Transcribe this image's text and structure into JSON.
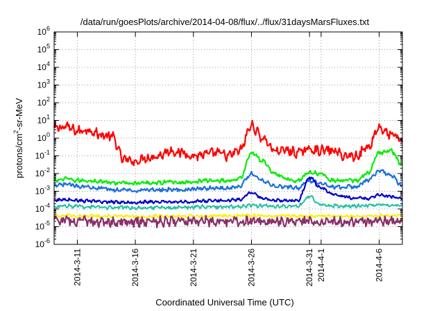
{
  "chart_data": {
    "type": "line",
    "title": "/data/run/goesPlots/archive/2014-04-08/flux/../flux/31daysMarsFluxes.txt",
    "xlabel": "Coordinated Universal Time (UTC)",
    "ylabel": {
      "pre": "protons/cm",
      "sup": "2",
      "post": "-sr-MeV"
    },
    "yscale": "log",
    "ylim_exponents": [
      -6,
      6
    ],
    "y_tick_labels": [
      {
        "base": "10",
        "exp": "6"
      },
      {
        "base": "10",
        "exp": "5"
      },
      {
        "base": "10",
        "exp": "4"
      },
      {
        "base": "10",
        "exp": "3"
      },
      {
        "base": "10",
        "exp": "2"
      },
      {
        "base": "10",
        "exp": "1"
      },
      {
        "base": "10",
        "exp": "0"
      },
      {
        "base": "10",
        "exp": "-1"
      },
      {
        "base": "10",
        "exp": "-2"
      },
      {
        "base": "10",
        "exp": "-3"
      },
      {
        "base": "10",
        "exp": "-4"
      },
      {
        "base": "10",
        "exp": "-5"
      },
      {
        "base": "10",
        "exp": "-6"
      }
    ],
    "x_start": "2014-03-09",
    "x_end": "2014-04-08",
    "x_tick_labels": [
      {
        "label": "2014-3-11",
        "date": "2014-03-11"
      },
      {
        "label": "2014-3-16",
        "date": "2014-03-16"
      },
      {
        "label": "2014-3-21",
        "date": "2014-03-21"
      },
      {
        "label": "2014-3-26",
        "date": "2014-03-26"
      },
      {
        "label": "2014-3-31",
        "date": "2014-03-31"
      },
      {
        "label": "2014-4-1",
        "date": "2014-04-01"
      },
      {
        "label": "2014-4-6",
        "date": "2014-04-06"
      }
    ],
    "grid": true,
    "series": [
      {
        "color": "#ff0000",
        "x": [
          "2014-03-09",
          "2014-03-10",
          "2014-03-11",
          "2014-03-12",
          "2014-03-13",
          "2014-03-14",
          "2014-03-15",
          "2014-03-16",
          "2014-03-17",
          "2014-03-18",
          "2014-03-19",
          "2014-03-20",
          "2014-03-21",
          "2014-03-22",
          "2014-03-23",
          "2014-03-24",
          "2014-03-25",
          "2014-03-26",
          "2014-03-27",
          "2014-03-28",
          "2014-03-29",
          "2014-03-30",
          "2014-03-31",
          "2014-04-01",
          "2014-04-02",
          "2014-04-03",
          "2014-04-04",
          "2014-04-05",
          "2014-04-06",
          "2014-04-07",
          "2014-04-08"
        ],
        "y": [
          3.5,
          4.5,
          2.5,
          3.0,
          1.5,
          1.2,
          0.06,
          0.05,
          0.08,
          0.1,
          0.2,
          0.15,
          0.1,
          0.12,
          0.15,
          0.1,
          0.2,
          5.0,
          1.0,
          0.2,
          0.2,
          0.15,
          0.25,
          0.2,
          0.2,
          0.1,
          0.1,
          0.3,
          4.0,
          1.5,
          0.8
        ]
      },
      {
        "color": "#00ee00",
        "x": [
          "2014-03-09",
          "2014-03-10",
          "2014-03-11",
          "2014-03-12",
          "2014-03-13",
          "2014-03-14",
          "2014-03-15",
          "2014-03-16",
          "2014-03-17",
          "2014-03-18",
          "2014-03-19",
          "2014-03-20",
          "2014-03-21",
          "2014-03-22",
          "2014-03-23",
          "2014-03-24",
          "2014-03-25",
          "2014-03-26",
          "2014-03-27",
          "2014-03-28",
          "2014-03-29",
          "2014-03-30",
          "2014-03-31",
          "2014-04-01",
          "2014-04-02",
          "2014-04-03",
          "2014-04-04",
          "2014-04-05",
          "2014-04-06",
          "2014-04-07",
          "2014-04-08"
        ],
        "y": [
          0.004,
          0.005,
          0.004,
          0.004,
          0.0035,
          0.003,
          0.003,
          0.0028,
          0.003,
          0.003,
          0.0035,
          0.003,
          0.0035,
          0.004,
          0.004,
          0.004,
          0.005,
          0.15,
          0.05,
          0.01,
          0.005,
          0.004,
          0.012,
          0.01,
          0.004,
          0.004,
          0.004,
          0.01,
          0.15,
          0.2,
          0.03
        ]
      },
      {
        "color": "#1e6fdc",
        "x": [
          "2014-03-09",
          "2014-03-10",
          "2014-03-11",
          "2014-03-12",
          "2014-03-13",
          "2014-03-14",
          "2014-03-15",
          "2014-03-16",
          "2014-03-17",
          "2014-03-18",
          "2014-03-19",
          "2014-03-20",
          "2014-03-21",
          "2014-03-22",
          "2014-03-23",
          "2014-03-24",
          "2014-03-25",
          "2014-03-26",
          "2014-03-27",
          "2014-03-28",
          "2014-03-29",
          "2014-03-30",
          "2014-03-31",
          "2014-04-01",
          "2014-04-02",
          "2014-04-03",
          "2014-04-04",
          "2014-04-05",
          "2014-04-06",
          "2014-04-07",
          "2014-04-08"
        ],
        "y": [
          0.002,
          0.0025,
          0.002,
          0.0018,
          0.0015,
          0.0012,
          0.0012,
          0.0011,
          0.0012,
          0.0012,
          0.0013,
          0.0012,
          0.0013,
          0.0015,
          0.0015,
          0.0015,
          0.002,
          0.01,
          0.004,
          0.002,
          0.0018,
          0.0015,
          0.004,
          0.003,
          0.0018,
          0.0018,
          0.0018,
          0.004,
          0.015,
          0.008,
          0.002
        ]
      },
      {
        "color": "#0000cc",
        "x": [
          "2014-03-09",
          "2014-03-10",
          "2014-03-11",
          "2014-03-12",
          "2014-03-13",
          "2014-03-14",
          "2014-03-15",
          "2014-03-16",
          "2014-03-17",
          "2014-03-18",
          "2014-03-19",
          "2014-03-20",
          "2014-03-21",
          "2014-03-22",
          "2014-03-23",
          "2014-03-24",
          "2014-03-25",
          "2014-03-26",
          "2014-03-27",
          "2014-03-28",
          "2014-03-29",
          "2014-03-30",
          "2014-03-31",
          "2014-04-01",
          "2014-04-02",
          "2014-04-03",
          "2014-04-04",
          "2014-04-05",
          "2014-04-06",
          "2014-04-07",
          "2014-04-08"
        ],
        "y": [
          0.0003,
          0.00035,
          0.0003,
          0.00028,
          0.00025,
          0.00025,
          0.00024,
          0.00024,
          0.00025,
          0.00025,
          0.00025,
          0.00025,
          0.00026,
          0.00028,
          0.0003,
          0.0003,
          0.00035,
          0.0008,
          0.0004,
          0.0003,
          0.0003,
          0.0003,
          0.006,
          0.0015,
          0.0007,
          0.0005,
          0.0004,
          0.0004,
          0.0006,
          0.0005,
          0.0004
        ]
      },
      {
        "color": "#20c0a0",
        "x": [
          "2014-03-09",
          "2014-03-10",
          "2014-03-11",
          "2014-03-12",
          "2014-03-13",
          "2014-03-14",
          "2014-03-15",
          "2014-03-16",
          "2014-03-17",
          "2014-03-18",
          "2014-03-19",
          "2014-03-20",
          "2014-03-21",
          "2014-03-22",
          "2014-03-23",
          "2014-03-24",
          "2014-03-25",
          "2014-03-26",
          "2014-03-27",
          "2014-03-28",
          "2014-03-29",
          "2014-03-30",
          "2014-03-31",
          "2014-04-01",
          "2014-04-02",
          "2014-04-03",
          "2014-04-04",
          "2014-04-05",
          "2014-04-06",
          "2014-04-07",
          "2014-04-08"
        ],
        "y": [
          0.00013,
          0.00015,
          0.00014,
          0.00013,
          0.00012,
          0.00012,
          0.00012,
          0.00012,
          0.00012,
          0.00012,
          0.00012,
          0.00012,
          0.00013,
          0.00013,
          0.00013,
          0.00013,
          0.00014,
          0.00016,
          0.00015,
          0.00014,
          0.00014,
          0.00014,
          0.0005,
          0.00018,
          0.00015,
          0.00015,
          0.00015,
          0.00015,
          0.00017,
          0.00016,
          0.00015
        ]
      },
      {
        "color": "#ffee00",
        "x": [
          "2014-03-09",
          "2014-03-10",
          "2014-03-11",
          "2014-03-12",
          "2014-03-13",
          "2014-03-14",
          "2014-03-15",
          "2014-03-16",
          "2014-03-17",
          "2014-03-18",
          "2014-03-19",
          "2014-03-20",
          "2014-03-21",
          "2014-03-22",
          "2014-03-23",
          "2014-03-24",
          "2014-03-25",
          "2014-03-26",
          "2014-03-27",
          "2014-03-28",
          "2014-03-29",
          "2014-03-30",
          "2014-03-31",
          "2014-04-01",
          "2014-04-02",
          "2014-04-03",
          "2014-04-04",
          "2014-04-05",
          "2014-04-06",
          "2014-04-07",
          "2014-04-08"
        ],
        "y": [
          4e-05,
          4.5e-05,
          4e-05,
          4e-05,
          4e-05,
          4e-05,
          3.8e-05,
          3.8e-05,
          3.8e-05,
          4e-05,
          4e-05,
          4e-05,
          4e-05,
          4e-05,
          4e-05,
          4e-05,
          4.2e-05,
          4.5e-05,
          4.2e-05,
          4e-05,
          4e-05,
          4e-05,
          4e-05,
          4e-05,
          4e-05,
          4e-05,
          4e-05,
          4e-05,
          4.2e-05,
          4.2e-05,
          4e-05
        ]
      },
      {
        "color": "#8b2f68",
        "x": [
          "2014-03-09",
          "2014-03-10",
          "2014-03-11",
          "2014-03-12",
          "2014-03-13",
          "2014-03-14",
          "2014-03-15",
          "2014-03-16",
          "2014-03-17",
          "2014-03-18",
          "2014-03-19",
          "2014-03-20",
          "2014-03-21",
          "2014-03-22",
          "2014-03-23",
          "2014-03-24",
          "2014-03-25",
          "2014-03-26",
          "2014-03-27",
          "2014-03-28",
          "2014-03-29",
          "2014-03-30",
          "2014-03-31",
          "2014-04-01",
          "2014-04-02",
          "2014-04-03",
          "2014-04-04",
          "2014-04-05",
          "2014-04-06",
          "2014-04-07",
          "2014-04-08"
        ],
        "y": [
          2e-05,
          2.2e-05,
          2e-05,
          2e-05,
          1.9e-05,
          1.9e-05,
          1.8e-05,
          1.8e-05,
          1.8e-05,
          1.9e-05,
          1.9e-05,
          1.9e-05,
          2e-05,
          2e-05,
          2e-05,
          2e-05,
          2e-05,
          2.1e-05,
          2e-05,
          2e-05,
          2e-05,
          2e-05,
          2e-05,
          2e-05,
          2e-05,
          2e-05,
          2e-05,
          2e-05,
          2.1e-05,
          2e-05,
          2e-05
        ]
      }
    ]
  }
}
